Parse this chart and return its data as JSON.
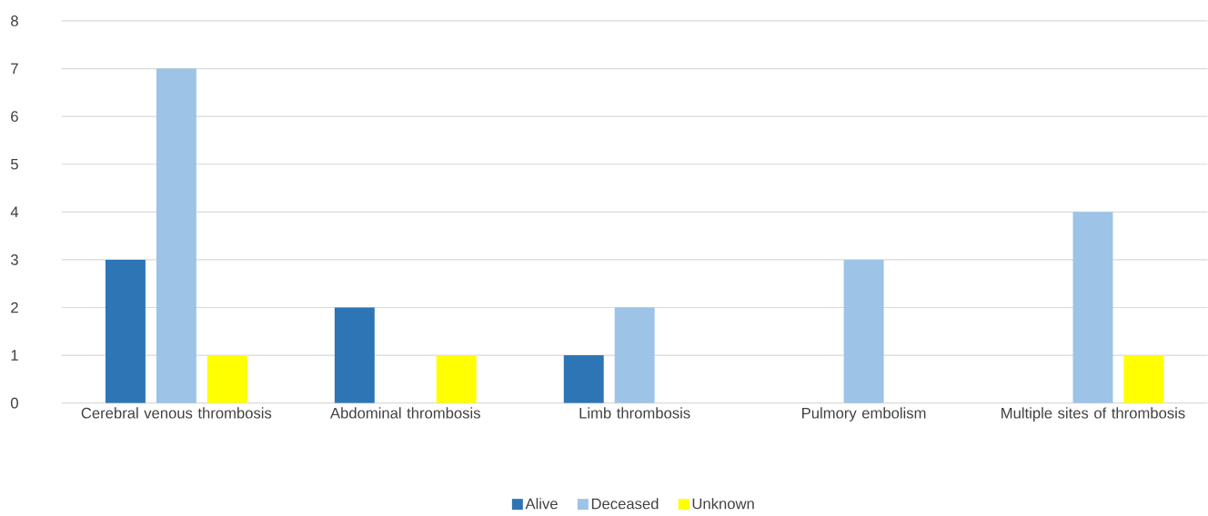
{
  "chart_data": {
    "type": "bar",
    "categories": [
      "Cerebral venous thrombosis",
      "Abdominal thrombosis",
      "Limb thrombosis",
      "Pulmory embolism",
      "Multiple sites of thrombosis"
    ],
    "series": [
      {
        "name": "Alive",
        "color": "#2e75b6",
        "values": [
          3,
          2,
          1,
          0,
          0
        ]
      },
      {
        "name": "Deceased",
        "color": "#9dc3e6",
        "values": [
          7,
          0,
          2,
          3,
          4
        ]
      },
      {
        "name": "Unknown",
        "color": "#ffff00",
        "values": [
          1,
          1,
          0,
          0,
          1
        ]
      }
    ],
    "ylim": [
      0,
      8
    ],
    "yticks": [
      0,
      1,
      2,
      3,
      4,
      5,
      6,
      7,
      8
    ],
    "grid": "y",
    "legend": "bottom"
  }
}
